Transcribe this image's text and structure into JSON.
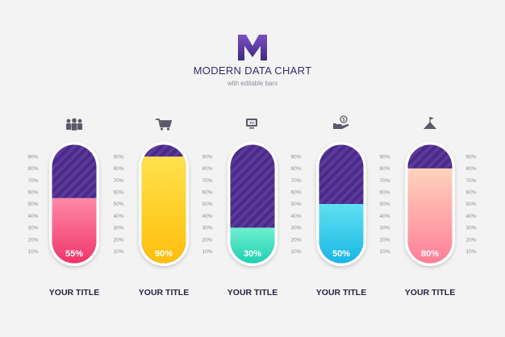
{
  "header": {
    "logo_letter": "M",
    "title": "MODERN DATA CHART",
    "subtitle": "with editable bars"
  },
  "colors": {
    "background": "#f3f3f3",
    "track": "#4a2a85",
    "track_stripe": "#5b3a9e",
    "logo_top": "#7a4fc4",
    "logo_bottom": "#3f2a7a"
  },
  "chart_data": {
    "type": "bar",
    "categories": [
      "YOUR TITLE",
      "YOUR TITLE",
      "YOUR TITLE",
      "YOUR TITLE",
      "YOUR TITLE"
    ],
    "values": [
      55,
      90,
      30,
      50,
      80
    ],
    "value_labels": [
      "55%",
      "90%",
      "30%",
      "50%",
      "80%"
    ],
    "icons": [
      "people-icon",
      "shopping-cart-icon",
      "tv-icon",
      "hand-money-icon",
      "mountain-flag-icon"
    ],
    "fill_colors": [
      [
        "#ff8aa8",
        "#f0356b"
      ],
      [
        "#ffe14d",
        "#ffbe0b"
      ],
      [
        "#6ff0cf",
        "#1fd0b3"
      ],
      [
        "#5fe0f0",
        "#19b6e6"
      ],
      [
        "#ffd3bd",
        "#ff7f98"
      ]
    ],
    "ticks": [
      "10%",
      "20%",
      "30%",
      "40%",
      "50%",
      "60%",
      "70%",
      "80%",
      "90%"
    ],
    "tick_values": [
      10,
      20,
      30,
      40,
      50,
      60,
      70,
      80,
      90
    ],
    "ylim": [
      0,
      100
    ]
  }
}
